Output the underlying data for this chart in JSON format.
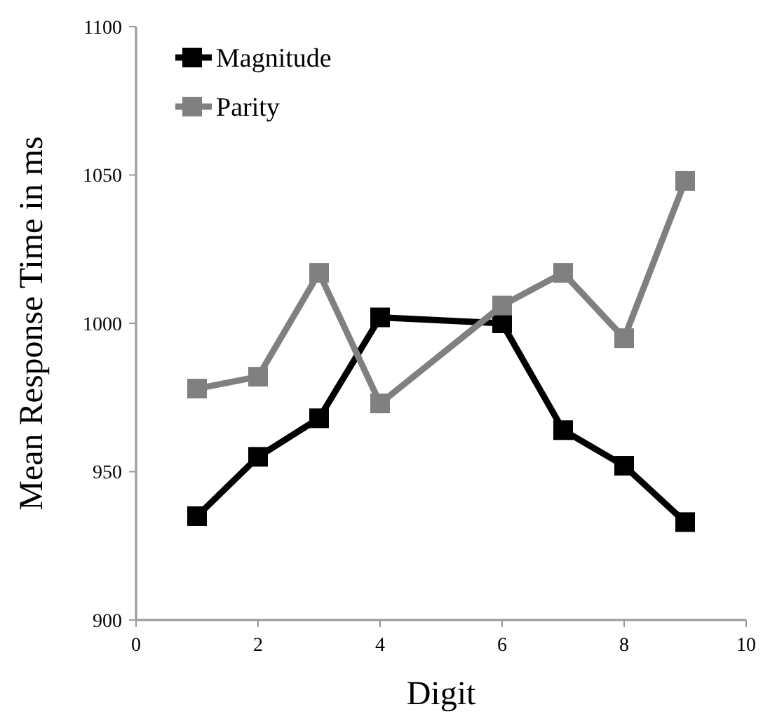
{
  "chart_data": {
    "type": "line",
    "xlabel": "Digit",
    "ylabel": "Mean Response Time in ms",
    "x": [
      1,
      2,
      3,
      4,
      6,
      7,
      8,
      9
    ],
    "series": [
      {
        "name": "Magnitude",
        "color": "#000000",
        "values": [
          935,
          955,
          968,
          1002,
          1000,
          964,
          952,
          933
        ]
      },
      {
        "name": "Parity",
        "color": "#808080",
        "values": [
          978,
          982,
          1017,
          973,
          1006,
          1017,
          995,
          1048
        ]
      }
    ],
    "xlim": [
      0,
      10
    ],
    "xticks": [
      0,
      2,
      4,
      6,
      8,
      10
    ],
    "ylim": [
      900,
      1100
    ],
    "yticks": [
      900,
      950,
      1000,
      1050,
      1100
    ],
    "grid": false,
    "legend": "top left",
    "marker": "square",
    "line_style": "solid"
  }
}
